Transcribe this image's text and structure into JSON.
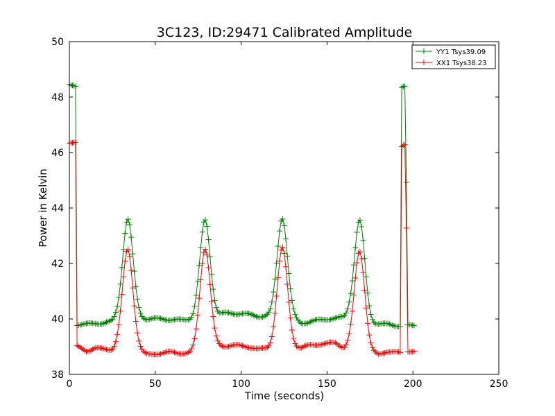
{
  "chart_data": {
    "type": "line",
    "title": "3C123, ID:29471 Calibrated Amplitude",
    "xlabel": "Time (seconds)",
    "ylabel": "Power in Kelvin",
    "xlim": [
      0,
      250
    ],
    "ylim": [
      38,
      50
    ],
    "xticks": [
      0,
      50,
      100,
      150,
      200,
      250
    ],
    "yticks": [
      38,
      40,
      42,
      44,
      46,
      48,
      50
    ],
    "grid": false,
    "legend_position": "top-right",
    "marker": "+",
    "series": [
      {
        "name": "YY1 Tsys39.09",
        "color": "#008000",
        "baseline": [
          [
            0,
            48.45
          ],
          [
            4,
            48.4
          ],
          [
            4.5,
            39.8
          ],
          [
            10,
            39.8
          ],
          [
            15,
            39.85
          ],
          [
            20,
            39.85
          ],
          [
            25,
            39.9
          ],
          [
            27,
            40.0
          ],
          [
            38,
            40.1
          ],
          [
            45,
            40.0
          ],
          [
            55,
            40.0
          ],
          [
            65,
            39.95
          ],
          [
            72,
            40.0
          ],
          [
            74,
            40.1
          ],
          [
            85,
            40.1
          ],
          [
            90,
            40.2
          ],
          [
            100,
            40.2
          ],
          [
            110,
            40.1
          ],
          [
            117,
            40.1
          ],
          [
            119,
            40.15
          ],
          [
            130,
            40.0
          ],
          [
            135,
            39.85
          ],
          [
            140,
            39.9
          ],
          [
            150,
            40.0
          ],
          [
            160,
            40.05
          ],
          [
            163,
            40.2
          ],
          [
            175,
            39.85
          ],
          [
            185,
            39.8
          ],
          [
            193,
            39.75
          ],
          [
            193.5,
            48.35
          ],
          [
            195,
            48.4
          ],
          [
            196,
            48.35
          ],
          [
            196.5,
            39.75
          ],
          [
            201,
            39.75
          ]
        ],
        "peaks": [
          {
            "center": 34,
            "amplitude": 43.6
          },
          {
            "center": 79,
            "amplitude": 43.55
          },
          {
            "center": 124,
            "amplitude": 43.65
          },
          {
            "center": 169,
            "amplitude": 43.55
          }
        ]
      },
      {
        "name": "XX1 Tsys38.23",
        "color": "#ff0000",
        "baseline": [
          [
            0,
            46.35
          ],
          [
            4,
            46.35
          ],
          [
            4.5,
            39.0
          ],
          [
            10,
            38.85
          ],
          [
            15,
            38.95
          ],
          [
            20,
            38.9
          ],
          [
            25,
            38.9
          ],
          [
            28,
            39.0
          ],
          [
            40,
            38.9
          ],
          [
            45,
            38.7
          ],
          [
            50,
            38.75
          ],
          [
            60,
            38.8
          ],
          [
            70,
            38.75
          ],
          [
            73,
            38.8
          ],
          [
            85,
            39.0
          ],
          [
            95,
            39.05
          ],
          [
            105,
            39.0
          ],
          [
            110,
            38.9
          ],
          [
            118,
            38.95
          ],
          [
            130,
            39.0
          ],
          [
            135,
            38.95
          ],
          [
            140,
            39.05
          ],
          [
            145,
            39.1
          ],
          [
            150,
            39.1
          ],
          [
            155,
            39.15
          ],
          [
            160,
            38.95
          ],
          [
            163,
            39.0
          ],
          [
            175,
            38.8
          ],
          [
            180,
            38.7
          ],
          [
            185,
            38.85
          ],
          [
            190,
            38.8
          ],
          [
            193,
            38.75
          ],
          [
            193.5,
            46.2
          ],
          [
            195,
            46.3
          ],
          [
            196,
            46.25
          ],
          [
            196.5,
            38.85
          ],
          [
            201,
            38.85
          ]
        ],
        "peaks": [
          {
            "center": 34,
            "amplitude": 42.5
          },
          {
            "center": 79,
            "amplitude": 42.55
          },
          {
            "center": 124,
            "amplitude": 42.55
          },
          {
            "center": 169,
            "amplitude": 42.45
          }
        ]
      }
    ]
  }
}
